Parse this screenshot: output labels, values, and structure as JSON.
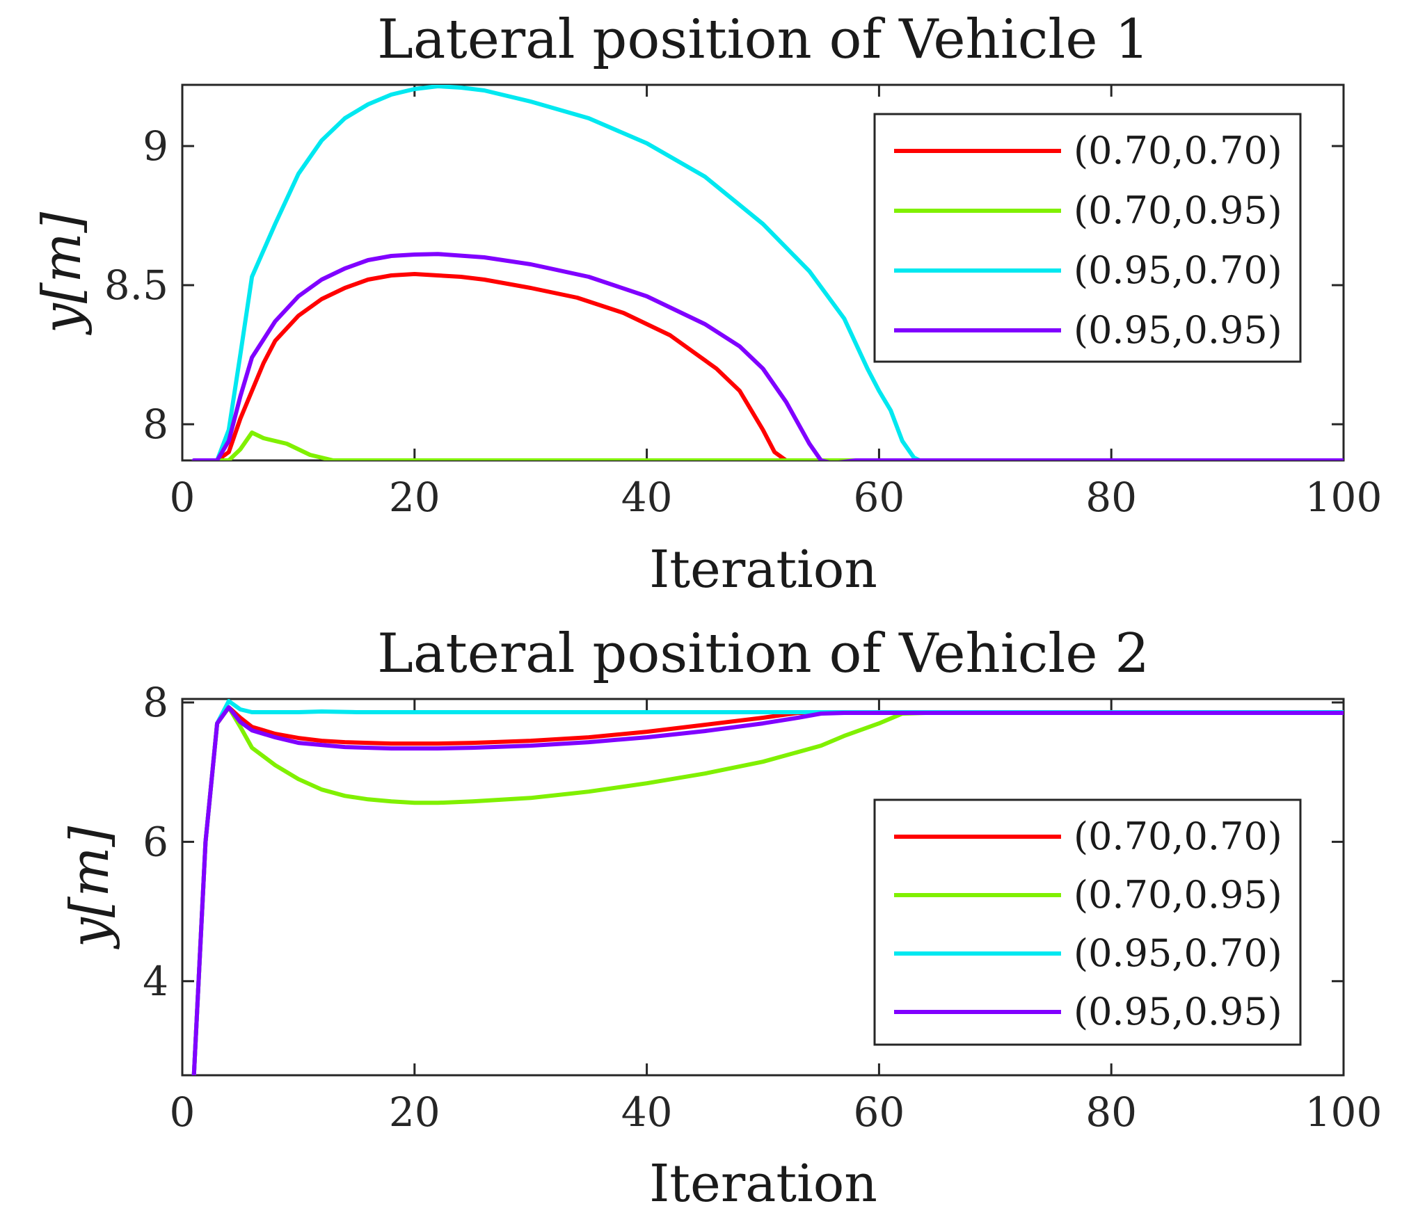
{
  "chart_data": [
    {
      "type": "line",
      "title": "Lateral position of Vehicle 1",
      "xlabel": "Iteration",
      "ylabel": "y[m]",
      "xlim": [
        0,
        100
      ],
      "ylim": [
        7.87,
        9.22
      ],
      "xticks": [
        0,
        20,
        40,
        60,
        80,
        100
      ],
      "xtick_labels": [
        "0",
        "20",
        "40",
        "60",
        "80",
        "100"
      ],
      "yticks": [
        8,
        8.5,
        9
      ],
      "ytick_labels": [
        "8",
        "8.5",
        "9"
      ],
      "legend_position": "top-right",
      "series": [
        {
          "name": "(0.70,0.70)",
          "color": "#ff0000",
          "points": [
            [
              1,
              7.87
            ],
            [
              3,
              7.87
            ],
            [
              4,
              7.9
            ],
            [
              5,
              8.02
            ],
            [
              6,
              8.12
            ],
            [
              7,
              8.22
            ],
            [
              8,
              8.3
            ],
            [
              10,
              8.39
            ],
            [
              12,
              8.45
            ],
            [
              14,
              8.49
            ],
            [
              16,
              8.52
            ],
            [
              18,
              8.535
            ],
            [
              20,
              8.54
            ],
            [
              22,
              8.535
            ],
            [
              24,
              8.53
            ],
            [
              26,
              8.52
            ],
            [
              28,
              8.505
            ],
            [
              30,
              8.49
            ],
            [
              34,
              8.455
            ],
            [
              38,
              8.4
            ],
            [
              42,
              8.32
            ],
            [
              46,
              8.2
            ],
            [
              48,
              8.12
            ],
            [
              50,
              7.98
            ],
            [
              51,
              7.9
            ],
            [
              52,
              7.87
            ],
            [
              100,
              7.87
            ]
          ]
        },
        {
          "name": "(0.70,0.95)",
          "color": "#80f000",
          "points": [
            [
              1,
              7.87
            ],
            [
              3,
              7.87
            ],
            [
              4,
              7.87
            ],
            [
              5,
              7.91
            ],
            [
              6,
              7.97
            ],
            [
              7,
              7.95
            ],
            [
              9,
              7.93
            ],
            [
              11,
              7.89
            ],
            [
              13,
              7.87
            ],
            [
              100,
              7.87
            ]
          ]
        },
        {
          "name": "(0.95,0.70)",
          "color": "#00e8f0",
          "points": [
            [
              1,
              7.87
            ],
            [
              3,
              7.87
            ],
            [
              4,
              7.98
            ],
            [
              5,
              8.25
            ],
            [
              6,
              8.53
            ],
            [
              8,
              8.72
            ],
            [
              10,
              8.9
            ],
            [
              12,
              9.02
            ],
            [
              14,
              9.1
            ],
            [
              16,
              9.15
            ],
            [
              18,
              9.185
            ],
            [
              20,
              9.205
            ],
            [
              22,
              9.215
            ],
            [
              24,
              9.21
            ],
            [
              26,
              9.2
            ],
            [
              30,
              9.16
            ],
            [
              35,
              9.1
            ],
            [
              40,
              9.01
            ],
            [
              45,
              8.89
            ],
            [
              50,
              8.72
            ],
            [
              54,
              8.55
            ],
            [
              57,
              8.38
            ],
            [
              59,
              8.2
            ],
            [
              60,
              8.12
            ],
            [
              61,
              8.05
            ],
            [
              62,
              7.94
            ],
            [
              63,
              7.88
            ],
            [
              64,
              7.86
            ],
            [
              65,
              7.87
            ],
            [
              100,
              7.87
            ]
          ]
        },
        {
          "name": "(0.95,0.95)",
          "color": "#8000ff",
          "points": [
            [
              1,
              7.87
            ],
            [
              3,
              7.87
            ],
            [
              4,
              7.94
            ],
            [
              5,
              8.1
            ],
            [
              6,
              8.24
            ],
            [
              8,
              8.37
            ],
            [
              10,
              8.46
            ],
            [
              12,
              8.52
            ],
            [
              14,
              8.56
            ],
            [
              16,
              8.59
            ],
            [
              18,
              8.605
            ],
            [
              20,
              8.61
            ],
            [
              22,
              8.612
            ],
            [
              26,
              8.6
            ],
            [
              30,
              8.575
            ],
            [
              35,
              8.53
            ],
            [
              40,
              8.46
            ],
            [
              45,
              8.36
            ],
            [
              48,
              8.28
            ],
            [
              50,
              8.2
            ],
            [
              52,
              8.08
            ],
            [
              54,
              7.93
            ],
            [
              55,
              7.87
            ],
            [
              56,
              7.86
            ],
            [
              58,
              7.87
            ],
            [
              100,
              7.87
            ]
          ]
        }
      ]
    },
    {
      "type": "line",
      "title": "Lateral position of Vehicle 2",
      "xlabel": "Iteration",
      "ylabel": "y[m]",
      "xlim": [
        0,
        100
      ],
      "ylim": [
        2.65,
        8.05
      ],
      "xticks": [
        0,
        20,
        40,
        60,
        80,
        100
      ],
      "xtick_labels": [
        "0",
        "20",
        "40",
        "60",
        "80",
        "100"
      ],
      "yticks": [
        4,
        6,
        8
      ],
      "ytick_labels": [
        "4",
        "6",
        "8"
      ],
      "legend_position": "center-right",
      "series": [
        {
          "name": "(0.70,0.70)",
          "color": "#ff0000",
          "points": [
            [
              1,
              2.65
            ],
            [
              2,
              6.0
            ],
            [
              3,
              7.7
            ],
            [
              4,
              7.93
            ],
            [
              5,
              7.78
            ],
            [
              6,
              7.65
            ],
            [
              8,
              7.55
            ],
            [
              10,
              7.49
            ],
            [
              12,
              7.45
            ],
            [
              14,
              7.43
            ],
            [
              16,
              7.42
            ],
            [
              18,
              7.41
            ],
            [
              20,
              7.41
            ],
            [
              22,
              7.41
            ],
            [
              25,
              7.42
            ],
            [
              30,
              7.45
            ],
            [
              35,
              7.5
            ],
            [
              40,
              7.58
            ],
            [
              45,
              7.68
            ],
            [
              50,
              7.78
            ],
            [
              53,
              7.85
            ],
            [
              100,
              7.85
            ]
          ]
        },
        {
          "name": "(0.70,0.95)",
          "color": "#80f000",
          "points": [
            [
              1,
              2.65
            ],
            [
              2,
              6.0
            ],
            [
              3,
              7.7
            ],
            [
              4,
              7.93
            ],
            [
              5,
              7.65
            ],
            [
              6,
              7.35
            ],
            [
              8,
              7.1
            ],
            [
              10,
              6.9
            ],
            [
              12,
              6.75
            ],
            [
              14,
              6.66
            ],
            [
              16,
              6.61
            ],
            [
              18,
              6.58
            ],
            [
              20,
              6.56
            ],
            [
              22,
              6.56
            ],
            [
              25,
              6.58
            ],
            [
              30,
              6.63
            ],
            [
              35,
              6.72
            ],
            [
              40,
              6.84
            ],
            [
              45,
              6.98
            ],
            [
              50,
              7.15
            ],
            [
              55,
              7.38
            ],
            [
              57,
              7.52
            ],
            [
              60,
              7.7
            ],
            [
              62,
              7.84
            ],
            [
              64,
              7.85
            ],
            [
              100,
              7.85
            ]
          ]
        },
        {
          "name": "(0.95,0.70)",
          "color": "#00e8f0",
          "points": [
            [
              1,
              2.65
            ],
            [
              2,
              6.0
            ],
            [
              3,
              7.7
            ],
            [
              4,
              8.02
            ],
            [
              5,
              7.9
            ],
            [
              6,
              7.86
            ],
            [
              8,
              7.86
            ],
            [
              10,
              7.86
            ],
            [
              12,
              7.87
            ],
            [
              15,
              7.86
            ],
            [
              20,
              7.86
            ],
            [
              100,
              7.86
            ]
          ]
        },
        {
          "name": "(0.95,0.95)",
          "color": "#8000ff",
          "points": [
            [
              1,
              2.65
            ],
            [
              2,
              6.0
            ],
            [
              3,
              7.7
            ],
            [
              4,
              7.93
            ],
            [
              5,
              7.72
            ],
            [
              6,
              7.6
            ],
            [
              8,
              7.5
            ],
            [
              10,
              7.42
            ],
            [
              12,
              7.39
            ],
            [
              14,
              7.36
            ],
            [
              16,
              7.35
            ],
            [
              18,
              7.34
            ],
            [
              20,
              7.34
            ],
            [
              22,
              7.34
            ],
            [
              25,
              7.35
            ],
            [
              30,
              7.38
            ],
            [
              35,
              7.43
            ],
            [
              40,
              7.5
            ],
            [
              45,
              7.59
            ],
            [
              50,
              7.7
            ],
            [
              53,
              7.78
            ],
            [
              55,
              7.84
            ],
            [
              57,
              7.85
            ],
            [
              100,
              7.85
            ]
          ]
        }
      ]
    }
  ]
}
